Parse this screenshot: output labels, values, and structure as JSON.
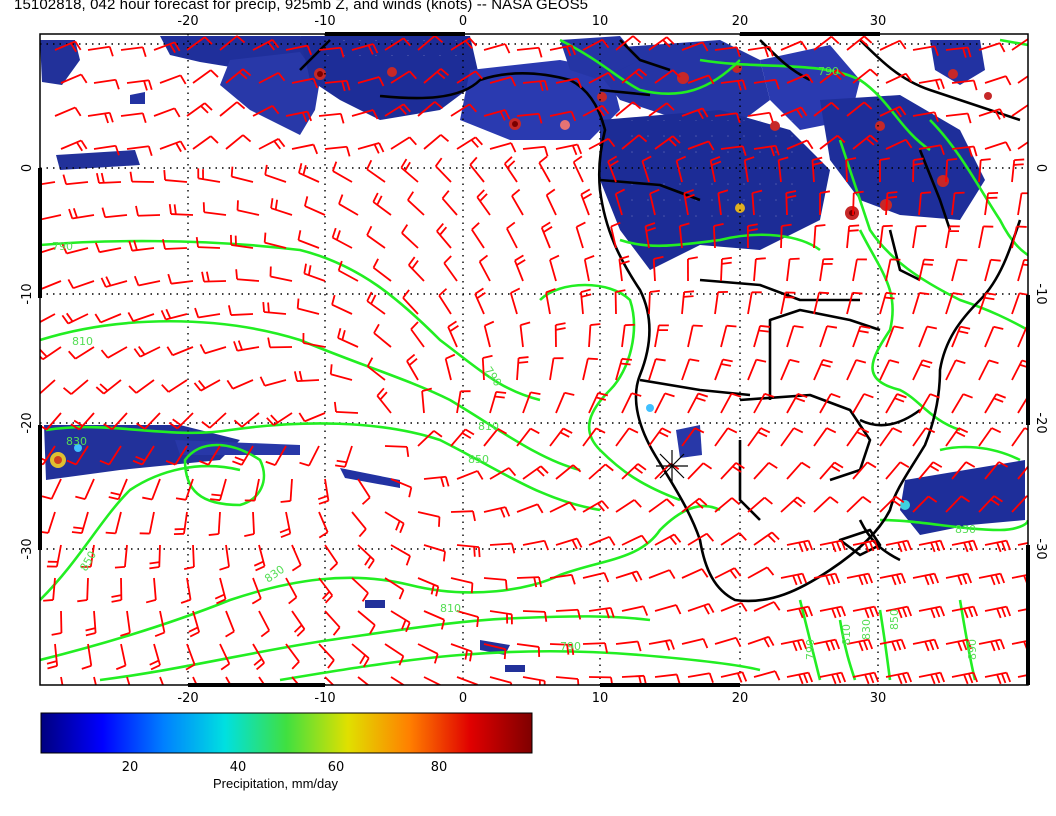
{
  "title": "15102818, 042 hour forecast for precip, 925mb Z, and winds (knots) -- NASA GEOS5",
  "map": {
    "lon_ticks": [
      "-20",
      "-10",
      "0",
      "10",
      "20",
      "30"
    ],
    "lat_ticks": [
      "0",
      "-10",
      "-20",
      "-30"
    ],
    "contour_labels": [
      "790",
      "810",
      "830",
      "850",
      "870",
      "890"
    ],
    "colors": {
      "barbs": "#ff0000",
      "contours": "#22ee22",
      "coast": "#000000",
      "precip_low": "#1a237e",
      "precip_high": "#7a0000"
    }
  },
  "colorbar": {
    "label": "Precipitation, mm/day",
    "ticks": [
      "20",
      "40",
      "60",
      "80"
    ],
    "tick_values": [
      20,
      40,
      60,
      80
    ],
    "range": [
      0,
      100
    ],
    "stops": [
      "#00007f",
      "#0000ff",
      "#0080ff",
      "#00e0e0",
      "#40e040",
      "#e0e000",
      "#ff8000",
      "#e00000",
      "#7f0000"
    ]
  }
}
